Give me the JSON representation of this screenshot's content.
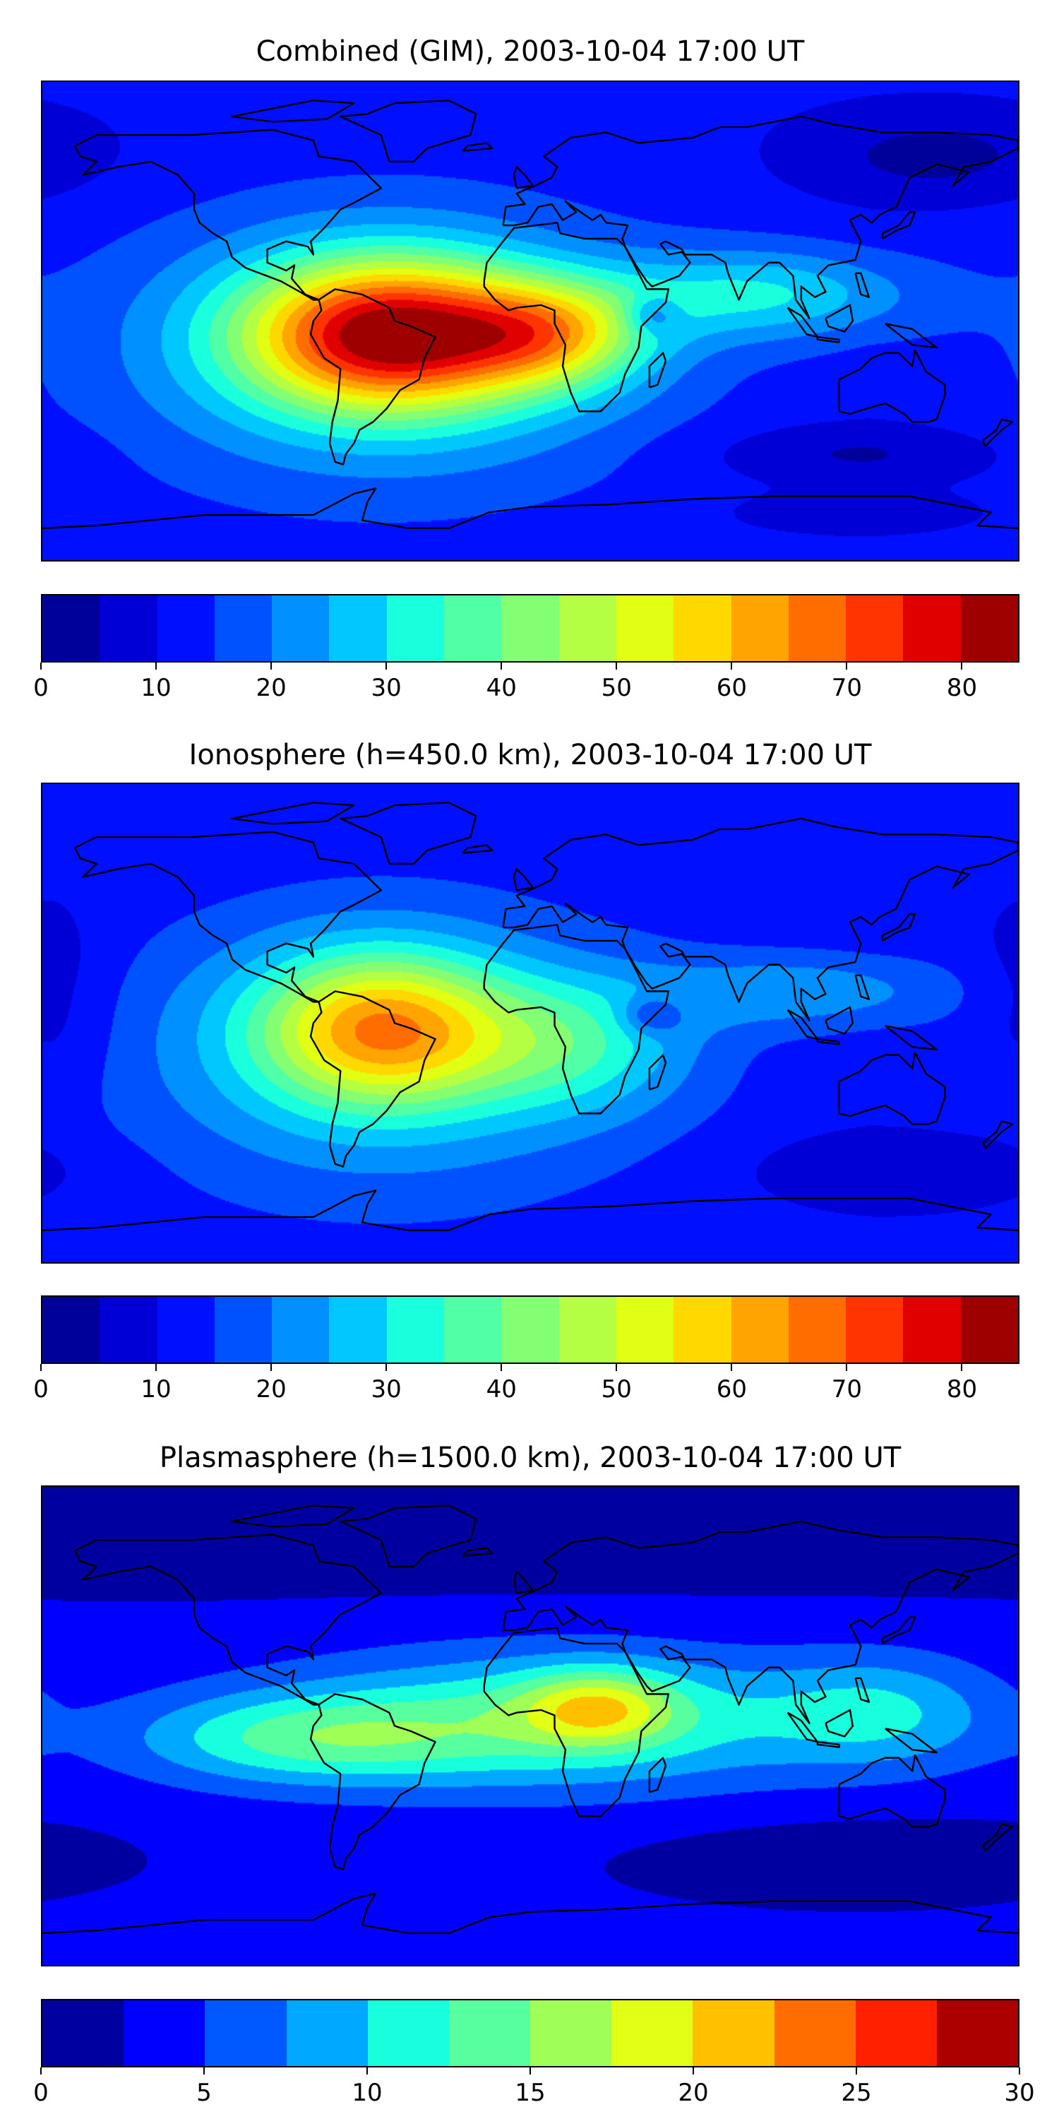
{
  "chart_data": [
    {
      "type": "heatmap",
      "title": "Combined (GIM), 2003-10-04 17:00 UT",
      "projection": "PlateCarree",
      "xlim": [
        -180,
        180
      ],
      "ylim": [
        -90,
        90
      ],
      "levels": [
        0,
        5,
        10,
        15,
        20,
        25,
        30,
        35,
        40,
        45,
        50,
        55,
        60,
        65,
        70,
        75,
        80,
        85
      ],
      "colors": [
        "#00009a",
        "#0000d6",
        "#0010ff",
        "#0052ff",
        "#0090ff",
        "#00c8ff",
        "#1affdc",
        "#50ffa6",
        "#84ff74",
        "#b4ff44",
        "#e0ff12",
        "#ffd800",
        "#ffa400",
        "#ff6c00",
        "#ff3400",
        "#e00000",
        "#9e0000"
      ],
      "colorbar_ticks": [
        "0",
        "10",
        "20",
        "30",
        "40",
        "50",
        "60",
        "70",
        "80"
      ],
      "colorbar_tick_values": [
        0,
        10,
        20,
        30,
        40,
        50,
        60,
        70,
        80
      ],
      "field_approx": {
        "base": 11,
        "features": [
          {
            "lon": -52,
            "lat": -5,
            "value": 60,
            "slon": 38,
            "slat": 20
          },
          {
            "lon": -55,
            "lat": -12,
            "value": 16,
            "slon": 75,
            "slat": 38
          },
          {
            "lon": 8,
            "lat": -5,
            "value": 30,
            "slon": 25,
            "slat": 14
          },
          {
            "lon": 85,
            "lat": 10,
            "value": 18,
            "slon": 40,
            "slat": 12
          },
          {
            "lon": 45,
            "lat": 2,
            "value": -12,
            "slon": 7,
            "slat": 5
          },
          {
            "lon": 150,
            "lat": 62,
            "value": -8,
            "slon": 35,
            "slat": 12
          },
          {
            "lon": 120,
            "lat": -50,
            "value": -7,
            "slon": 40,
            "slat": 8
          },
          {
            "lon": 120,
            "lat": -72,
            "value": -6,
            "slon": 30,
            "slat": 5
          }
        ]
      }
    },
    {
      "type": "heatmap",
      "title": "Ionosphere  (h=450.0 km), 2003-10-04 17:00 UT",
      "projection": "PlateCarree",
      "xlim": [
        -180,
        180
      ],
      "ylim": [
        -90,
        90
      ],
      "levels": [
        0,
        5,
        10,
        15,
        20,
        25,
        30,
        35,
        40,
        45,
        50,
        55,
        60,
        65,
        70,
        75,
        80,
        85
      ],
      "colors": [
        "#00009a",
        "#0000d6",
        "#0010ff",
        "#0052ff",
        "#0090ff",
        "#00c8ff",
        "#1affdc",
        "#50ffa6",
        "#84ff74",
        "#b4ff44",
        "#e0ff12",
        "#ffd800",
        "#ffa400",
        "#ff6c00",
        "#ff3400",
        "#e00000",
        "#9e0000"
      ],
      "colorbar_ticks": [
        "0",
        "10",
        "20",
        "30",
        "40",
        "50",
        "60",
        "70",
        "80"
      ],
      "colorbar_tick_values": [
        0,
        10,
        20,
        30,
        40,
        50,
        60,
        70,
        80
      ],
      "field_approx": {
        "base": 11,
        "features": [
          {
            "lon": -55,
            "lat": -2,
            "value": 40,
            "slon": 32,
            "slat": 20
          },
          {
            "lon": -55,
            "lat": -12,
            "value": 16,
            "slon": 70,
            "slat": 38
          },
          {
            "lon": 15,
            "lat": -8,
            "value": 16,
            "slon": 30,
            "slat": 18
          },
          {
            "lon": 100,
            "lat": 12,
            "value": 12,
            "slon": 40,
            "slat": 10
          },
          {
            "lon": 45,
            "lat": 3,
            "value": -12,
            "slon": 8,
            "slat": 5
          },
          {
            "lon": -175,
            "lat": 10,
            "value": -6,
            "slon": 15,
            "slat": 25
          },
          {
            "lon": 140,
            "lat": -55,
            "value": -6,
            "slon": 40,
            "slat": 10
          }
        ]
      }
    },
    {
      "type": "heatmap",
      "title": "Plasmasphere (h=1500.0 km), 2003-10-04 17:00 UT",
      "projection": "PlateCarree",
      "xlim": [
        -180,
        180
      ],
      "ylim": [
        -90,
        90
      ],
      "levels": [
        0,
        2.5,
        5,
        7.5,
        10,
        12.5,
        15,
        17.5,
        20,
        22.5,
        25,
        27.5,
        30
      ],
      "colors": [
        "#0000a0",
        "#0000ff",
        "#0058ff",
        "#00a8ff",
        "#18ffde",
        "#58ff9e",
        "#a0ff56",
        "#e2ff16",
        "#ffc000",
        "#ff6c00",
        "#ff2000",
        "#ac0000"
      ],
      "colorbar_ticks": [
        "0",
        "5",
        "10",
        "15",
        "20",
        "25",
        "30"
      ],
      "colorbar_tick_values": [
        0,
        5,
        10,
        15,
        20,
        25,
        30
      ],
      "field_approx": {
        "base": 3,
        "features": [
          {
            "lon": 10,
            "lat": 2,
            "value": 10,
            "slon": 70,
            "slat": 18
          },
          {
            "lon": 25,
            "lat": 7,
            "value": 9,
            "slon": 20,
            "slat": 10
          },
          {
            "lon": -85,
            "lat": -5,
            "value": 8,
            "slon": 45,
            "slat": 12
          },
          {
            "lon": 130,
            "lat": 5,
            "value": 6,
            "slon": 30,
            "slat": 15
          },
          {
            "lon": 0,
            "lat": 70,
            "value": -2,
            "slon": 300,
            "slat": 15
          },
          {
            "lon": 120,
            "lat": -50,
            "value": -2,
            "slon": 60,
            "slat": 12
          }
        ]
      }
    }
  ]
}
